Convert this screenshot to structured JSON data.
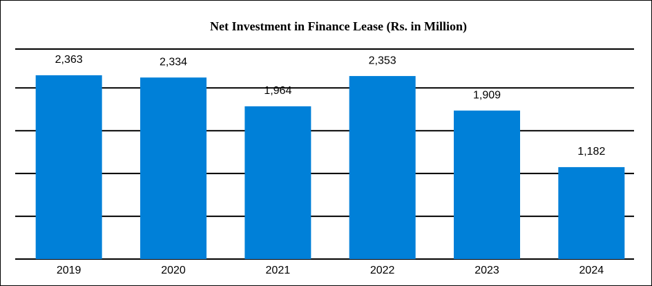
{
  "chart_data": {
    "type": "bar",
    "title": "Net Investment in Finance Lease (Rs. in Million)",
    "categories": [
      "2019",
      "2020",
      "2021",
      "2022",
      "2023",
      "2024"
    ],
    "values": [
      2363,
      2334,
      1964,
      2353,
      1909,
      1182
    ],
    "value_labels": [
      "2,363",
      "2,334",
      "1,964",
      "2,353",
      "1,909",
      "1,182"
    ],
    "color": "#0080d8",
    "ylim": [
      0,
      2700
    ],
    "yticks": [
      0,
      550,
      1100,
      1650,
      2200
    ],
    "grid": true
  }
}
